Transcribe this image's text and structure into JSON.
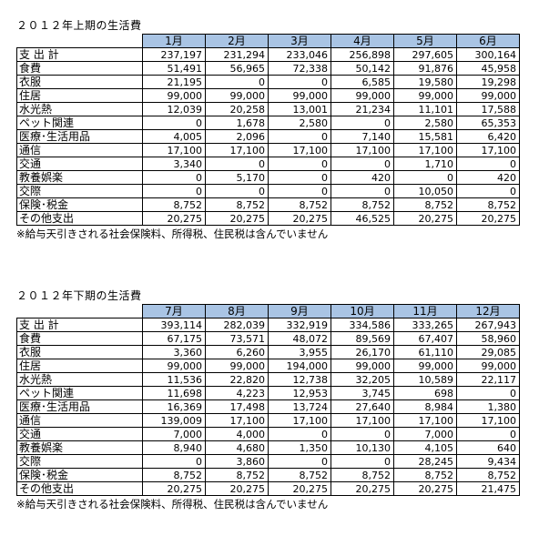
{
  "chart_data": [
    {
      "type": "table",
      "title": "２０１２年上期の生活費",
      "months": [
        "1月",
        "2月",
        "3月",
        "4月",
        "5月",
        "6月"
      ],
      "rows": [
        {
          "label": "支 出 計",
          "values": [
            "237,197",
            "231,294",
            "233,046",
            "256,898",
            "297,605",
            "300,164"
          ]
        },
        {
          "label": "食費",
          "values": [
            "51,491",
            "56,965",
            "72,338",
            "50,142",
            "91,876",
            "45,958"
          ]
        },
        {
          "label": "衣服",
          "values": [
            "21,195",
            "0",
            "0",
            "6,585",
            "19,580",
            "19,298"
          ]
        },
        {
          "label": "住居",
          "values": [
            "99,000",
            "99,000",
            "99,000",
            "99,000",
            "99,000",
            "99,000"
          ]
        },
        {
          "label": "水光熱",
          "values": [
            "12,039",
            "20,258",
            "13,001",
            "21,234",
            "11,101",
            "17,588"
          ]
        },
        {
          "label": "ペット関連",
          "values": [
            "0",
            "1,678",
            "2,580",
            "0",
            "2,580",
            "65,353"
          ]
        },
        {
          "label": "医療･生活用品",
          "values": [
            "4,005",
            "2,096",
            "0",
            "7,140",
            "15,581",
            "6,420"
          ]
        },
        {
          "label": "通信",
          "values": [
            "17,100",
            "17,100",
            "17,100",
            "17,100",
            "17,100",
            "17,100"
          ]
        },
        {
          "label": "交通",
          "values": [
            "3,340",
            "0",
            "0",
            "0",
            "1,710",
            "0"
          ]
        },
        {
          "label": "教養娯楽",
          "values": [
            "0",
            "5,170",
            "0",
            "420",
            "0",
            "420"
          ]
        },
        {
          "label": "交際",
          "values": [
            "0",
            "0",
            "0",
            "0",
            "10,050",
            "0"
          ]
        },
        {
          "label": "保険･税金",
          "values": [
            "8,752",
            "8,752",
            "8,752",
            "8,752",
            "8,752",
            "8,752"
          ]
        },
        {
          "label": "その他支出",
          "values": [
            "20,275",
            "20,275",
            "20,275",
            "46,525",
            "20,275",
            "20,275"
          ]
        }
      ],
      "note": "※給与天引きされる社会保険料、所得税、住民税は含んでいません"
    },
    {
      "type": "table",
      "title": "２０１２年下期の生活費",
      "months": [
        "7月",
        "8月",
        "9月",
        "10月",
        "11月",
        "12月"
      ],
      "rows": [
        {
          "label": "支 出 計",
          "values": [
            "393,114",
            "282,039",
            "332,919",
            "334,586",
            "333,265",
            "267,943"
          ]
        },
        {
          "label": "食費",
          "values": [
            "67,175",
            "73,571",
            "48,072",
            "89,569",
            "67,407",
            "58,960"
          ]
        },
        {
          "label": "衣服",
          "values": [
            "3,360",
            "6,260",
            "3,955",
            "26,170",
            "61,110",
            "29,085"
          ]
        },
        {
          "label": "住居",
          "values": [
            "99,000",
            "99,000",
            "194,000",
            "99,000",
            "99,000",
            "99,000"
          ]
        },
        {
          "label": "水光熱",
          "values": [
            "11,536",
            "22,820",
            "12,738",
            "32,205",
            "10,589",
            "22,117"
          ]
        },
        {
          "label": "ペット関連",
          "values": [
            "11,698",
            "4,223",
            "12,953",
            "3,745",
            "698",
            "0"
          ]
        },
        {
          "label": "医療･生活用品",
          "values": [
            "16,369",
            "17,498",
            "13,724",
            "27,640",
            "8,984",
            "1,380"
          ]
        },
        {
          "label": "通信",
          "values": [
            "139,009",
            "17,100",
            "17,100",
            "17,100",
            "17,100",
            "17,100"
          ]
        },
        {
          "label": "交通",
          "values": [
            "7,000",
            "4,000",
            "0",
            "0",
            "7,000",
            "0"
          ]
        },
        {
          "label": "教養娯楽",
          "values": [
            "8,940",
            "4,680",
            "1,350",
            "10,130",
            "4,105",
            "640"
          ]
        },
        {
          "label": "交際",
          "values": [
            "0",
            "3,860",
            "0",
            "0",
            "28,245",
            "9,434"
          ]
        },
        {
          "label": "保険･税金",
          "values": [
            "8,752",
            "8,752",
            "8,752",
            "8,752",
            "8,752",
            "8,752"
          ]
        },
        {
          "label": "その他支出",
          "values": [
            "20,275",
            "20,275",
            "20,275",
            "20,275",
            "20,275",
            "21,475"
          ]
        }
      ],
      "note": "※給与天引きされる社会保険料、所得税、住民税は含んでいません"
    }
  ]
}
